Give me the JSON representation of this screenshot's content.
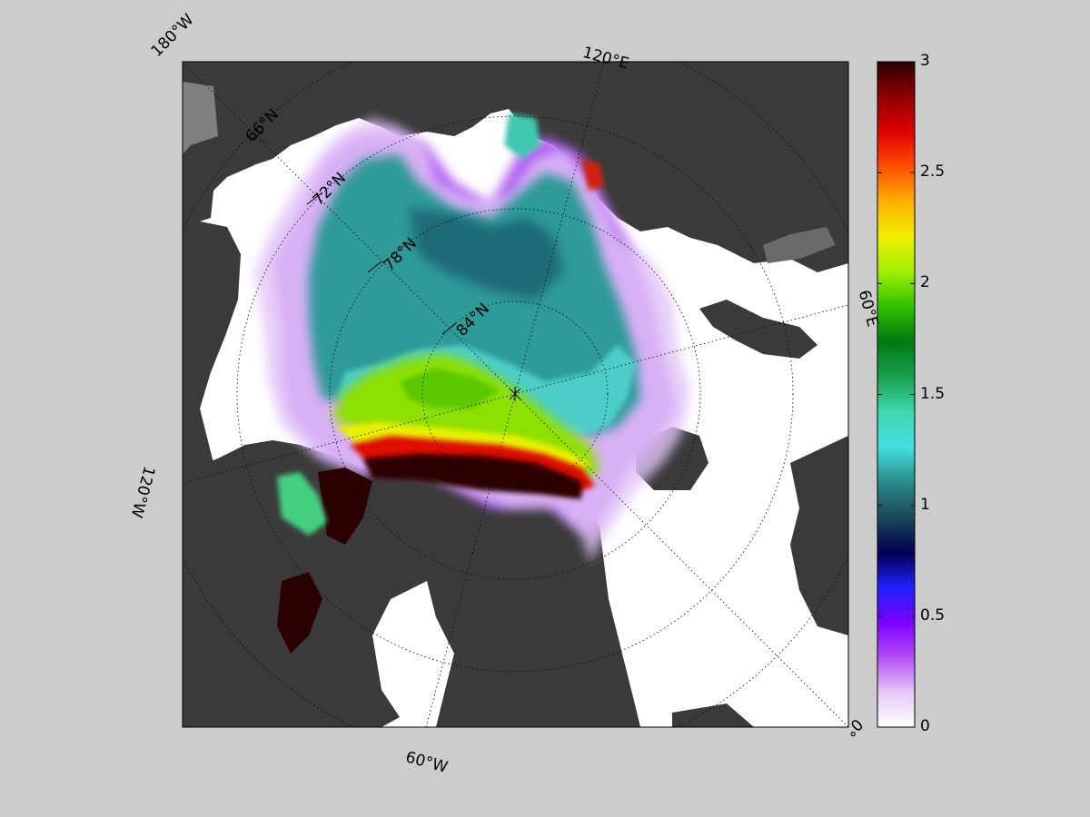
{
  "map": {
    "longitude_labels": [
      {
        "id": "180w",
        "text": "180°W"
      },
      {
        "id": "120e",
        "text": "120°E"
      },
      {
        "id": "60e",
        "text": "60°E"
      },
      {
        "id": "0",
        "text": "0°"
      },
      {
        "id": "60w",
        "text": "60°W"
      },
      {
        "id": "120w",
        "text": "120°W"
      }
    ],
    "latitude_labels": [
      {
        "id": "66n",
        "text": "66°N"
      },
      {
        "id": "72n",
        "text": "72°N"
      },
      {
        "id": "78n",
        "text": "78°N"
      },
      {
        "id": "84n",
        "text": "84°N"
      }
    ],
    "colors": {
      "background": "#cccccc",
      "land": "#3a3a3a",
      "land_dark": "#333333",
      "open_water": "#ffffff",
      "frame": "#000000"
    }
  },
  "colorbar": {
    "min": 0,
    "max": 3,
    "ticks": [
      "0",
      "0.5",
      "1",
      "1.5",
      "2",
      "2.5",
      "3"
    ],
    "colormap": [
      "#ffffff",
      "#e6c8f5",
      "#b34cf5",
      "#7a00ff",
      "#2020ff",
      "#000050",
      "#1a4a5a",
      "#2a8a8a",
      "#44e0e0",
      "#40d8b0",
      "#18a050",
      "#007a10",
      "#30c000",
      "#a0f000",
      "#f0f000",
      "#ffb000",
      "#ff5000",
      "#e00000",
      "#900000",
      "#2a0000"
    ]
  }
}
